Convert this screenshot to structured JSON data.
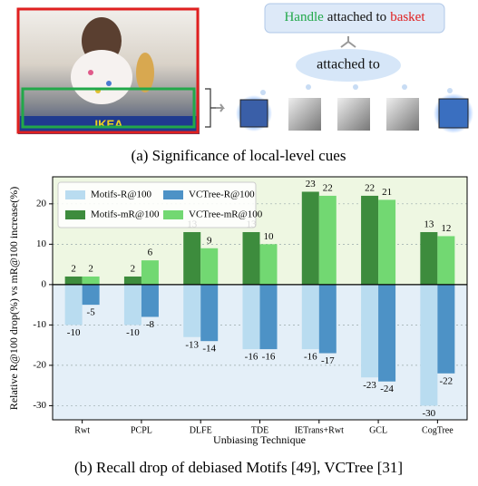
{
  "figure_a": {
    "photo_text": "IKEA",
    "relation_box": {
      "subject": "Handle",
      "predicate": "attached to",
      "object": "basket"
    },
    "cloud_label": "attached to",
    "caption": "(a) Significance of local-level cues"
  },
  "chart_data": {
    "type": "bar",
    "x_label": "Unbiasing Technique",
    "y_label": "Relative R@100 drop(%) vs mR@100 increase(%)",
    "categories": [
      "Rwt",
      "PCPL",
      "DLFE",
      "TDE",
      "IETrans+Rwt",
      "GCL",
      "CogTree"
    ],
    "series": [
      {
        "name": "Motifs-R@100",
        "color": "#b9dcf0",
        "values": [
          -10,
          -10,
          -13,
          -16,
          -16,
          -23,
          -30
        ]
      },
      {
        "name": "VCTree-R@100",
        "color": "#4d92c6",
        "values": [
          -5,
          -8,
          -14,
          -16,
          -17,
          -24,
          -22
        ]
      },
      {
        "name": "Motifs-mR@100",
        "color": "#3d8c3d",
        "values": [
          2,
          2,
          13,
          13,
          23,
          22,
          13
        ]
      },
      {
        "name": "VCTree-mR@100",
        "color": "#72d872",
        "values": [
          2,
          6,
          9,
          10,
          22,
          21,
          12
        ]
      }
    ],
    "ylim": [
      -33.5,
      26.7
    ],
    "yticks": [
      -30,
      -20,
      -10,
      0,
      10,
      20
    ],
    "grid": true,
    "legend": "upper left",
    "caption": "(b) Recall drop of debiased Motifs [49], VCTree [31]"
  }
}
